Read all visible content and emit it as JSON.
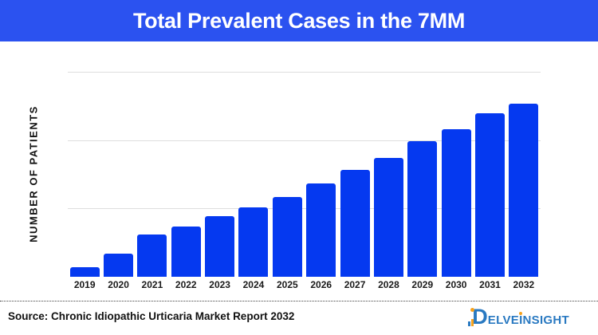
{
  "header": {
    "title": "Total Prevalent Cases in the 7MM"
  },
  "chart_data": {
    "type": "bar",
    "title": "Total Prevalent Cases in the 7MM",
    "xlabel": "",
    "ylabel": "NUMBER OF PATIENTS",
    "categories": [
      "2019",
      "2020",
      "2021",
      "2022",
      "2023",
      "2024",
      "2025",
      "2026",
      "2027",
      "2028",
      "2029",
      "2030",
      "2031",
      "2032"
    ],
    "values": [
      0.14,
      0.34,
      0.62,
      0.73,
      0.89,
      1.01,
      1.17,
      1.37,
      1.57,
      1.74,
      1.98,
      2.16,
      2.39,
      2.53
    ],
    "values_note": "Y-axis has no numeric tick labels; values estimated in relative units where unlabeled gridlines sit at 1, 2 and 3.",
    "ylim": [
      0,
      3
    ],
    "gridlines": [
      1,
      2,
      3
    ],
    "grid": "horizontal only, no baseline axis line",
    "legend_position": "none",
    "bar_color": "#0539F0",
    "grid_color": "#DEDEDE"
  },
  "footer": {
    "source": "Source: Chronic Idiopathic Urticaria Market Report 2032"
  },
  "logo": {
    "brand": "DelveInsight",
    "d": "D",
    "part1": "ELVE",
    "i": "I",
    "part2": "NSIGHT",
    "blue": "#2979C1",
    "orange": "#F6A21E"
  },
  "colors": {
    "header_bg": "#2B52F0",
    "header_text": "#FFFFFF",
    "bar": "#0539F0",
    "axis_text": "#1A1A1A"
  }
}
